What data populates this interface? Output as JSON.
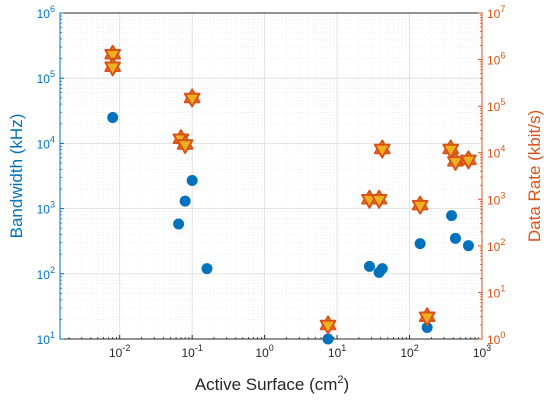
{
  "chart_data": {
    "type": "scatter",
    "xlabel": "Active Surface (cm",
    "xlabel_sup": "2",
    "xlabel_end": ")",
    "ylabel_left": "Bandwidth (kHz)",
    "ylabel_right": "Data Rate (kbit/s)",
    "x_scale": "log",
    "y_scale_left": "log",
    "y_scale_right": "log",
    "xlim": [
      0.0015,
      1000
    ],
    "ylim_left": [
      10,
      1000000
    ],
    "ylim_right": [
      1,
      10000000
    ],
    "x_ticks": [
      0.01,
      0.1,
      1,
      10,
      100,
      1000
    ],
    "y_ticks_left": [
      10,
      100,
      1000,
      10000,
      100000,
      1000000
    ],
    "y_ticks_right": [
      1,
      10,
      100,
      1000,
      10000,
      100000,
      1000000,
      10000000
    ],
    "grid": true,
    "colors": {
      "left": "#0072BD",
      "right": "#D95319",
      "axis": "#262626"
    },
    "series": [
      {
        "axis": "left",
        "marker": "circle",
        "x": [
          0.008,
          0.065,
          0.08,
          0.1,
          0.16,
          7.5,
          28,
          38,
          42,
          140,
          175,
          380,
          430,
          650
        ],
        "y": [
          25000,
          580,
          1300,
          2700,
          120,
          10,
          130,
          105,
          120,
          290,
          15,
          780,
          350,
          270
        ]
      },
      {
        "axis": "right",
        "marker": "hexagram",
        "x": [
          0.008,
          0.008,
          0.07,
          0.08,
          0.1,
          7.5,
          28,
          38,
          42,
          140,
          175,
          370,
          430,
          650
        ],
        "y": [
          1300000,
          700000,
          20000,
          15000,
          150000,
          2,
          1000,
          1000,
          12000,
          750,
          3,
          12000,
          6500,
          7000
        ]
      }
    ]
  }
}
